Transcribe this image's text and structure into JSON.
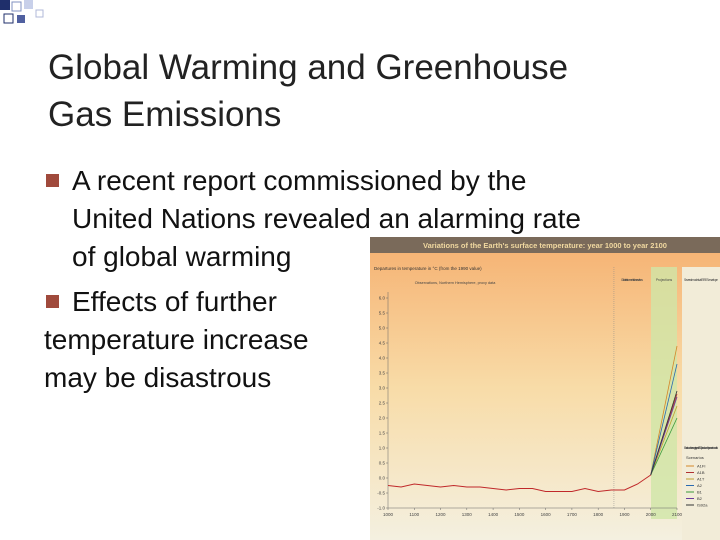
{
  "title": [
    "Global Warming and Greenhouse",
    "Gas Emissions"
  ],
  "bullets": [
    {
      "lines": [
        "A recent report commissioned by the",
        "United Nations revealed an alarming rate",
        "of global warming"
      ]
    },
    {
      "lines": [
        "Effects of further",
        "temperature increase",
        "may be disastrous"
      ]
    }
  ],
  "chart_data": {
    "type": "line",
    "title": "Variations of the Earth's surface temperature: year 1000 to year 2100",
    "ylabel": "Departures in temperature in °C (from the 1990 value)",
    "annotations": [
      "Observations, Northern Hemisphere, proxy data",
      "Global instrumental observations",
      "Projections",
      "Several models all SRES envelope",
      "Bars show the range in year 2100 produced by several models"
    ],
    "legend_title": "Scenarios",
    "xlim": [
      1000,
      2100
    ],
    "xticks": [
      1000,
      1100,
      1200,
      1300,
      1400,
      1500,
      1600,
      1700,
      1800,
      1900,
      2000,
      2100
    ],
    "ylim": [
      -1,
      6
    ],
    "yticks": [
      {
        "value": -1,
        "label": "-1.0"
      },
      -0.5,
      {
        "value": 0,
        "label": "0.0"
      },
      0.5,
      {
        "value": 1,
        "label": "1.0"
      },
      1.5,
      {
        "value": 2,
        "label": "2.0"
      },
      2.5,
      {
        "value": 3,
        "label": "3.0"
      },
      3.5,
      {
        "value": 4,
        "label": "4.0"
      },
      4.5,
      {
        "value": 5,
        "label": "5.0"
      },
      5.5,
      {
        "value": 6,
        "label": "6.0"
      }
    ],
    "observed": {
      "color": "#c0282a",
      "x": [
        1000,
        1050,
        1100,
        1150,
        1200,
        1250,
        1300,
        1350,
        1400,
        1450,
        1500,
        1550,
        1600,
        1650,
        1700,
        1750,
        1800,
        1850,
        1900,
        1950,
        2000
      ],
      "values": [
        -0.25,
        -0.3,
        -0.2,
        -0.25,
        -0.3,
        -0.25,
        -0.3,
        -0.3,
        -0.35,
        -0.4,
        -0.35,
        -0.35,
        -0.45,
        -0.45,
        -0.45,
        -0.35,
        -0.45,
        -0.4,
        -0.4,
        -0.2,
        0.1
      ]
    },
    "series": [
      {
        "name": "A1FI",
        "color": "#d4872a",
        "x": [
          2000,
          2100
        ],
        "values": [
          0.1,
          4.4
        ]
      },
      {
        "name": "A1B",
        "color": "#b03030",
        "x": [
          2000,
          2100
        ],
        "values": [
          0.1,
          2.8
        ]
      },
      {
        "name": "A1T",
        "color": "#c0a030",
        "x": [
          2000,
          2100
        ],
        "values": [
          0.1,
          2.4
        ]
      },
      {
        "name": "A2",
        "color": "#2a6ab0",
        "x": [
          2000,
          2100
        ],
        "values": [
          0.1,
          3.8
        ]
      },
      {
        "name": "B1",
        "color": "#3a9a3a",
        "x": [
          2000,
          2100
        ],
        "values": [
          0.1,
          2.0
        ]
      },
      {
        "name": "B2",
        "color": "#6a3a9a",
        "x": [
          2000,
          2100
        ],
        "values": [
          0.1,
          2.7
        ]
      },
      {
        "name": "IS92a",
        "color": "#333333",
        "x": [
          2000,
          2100
        ],
        "values": [
          0.1,
          2.9
        ]
      }
    ]
  }
}
